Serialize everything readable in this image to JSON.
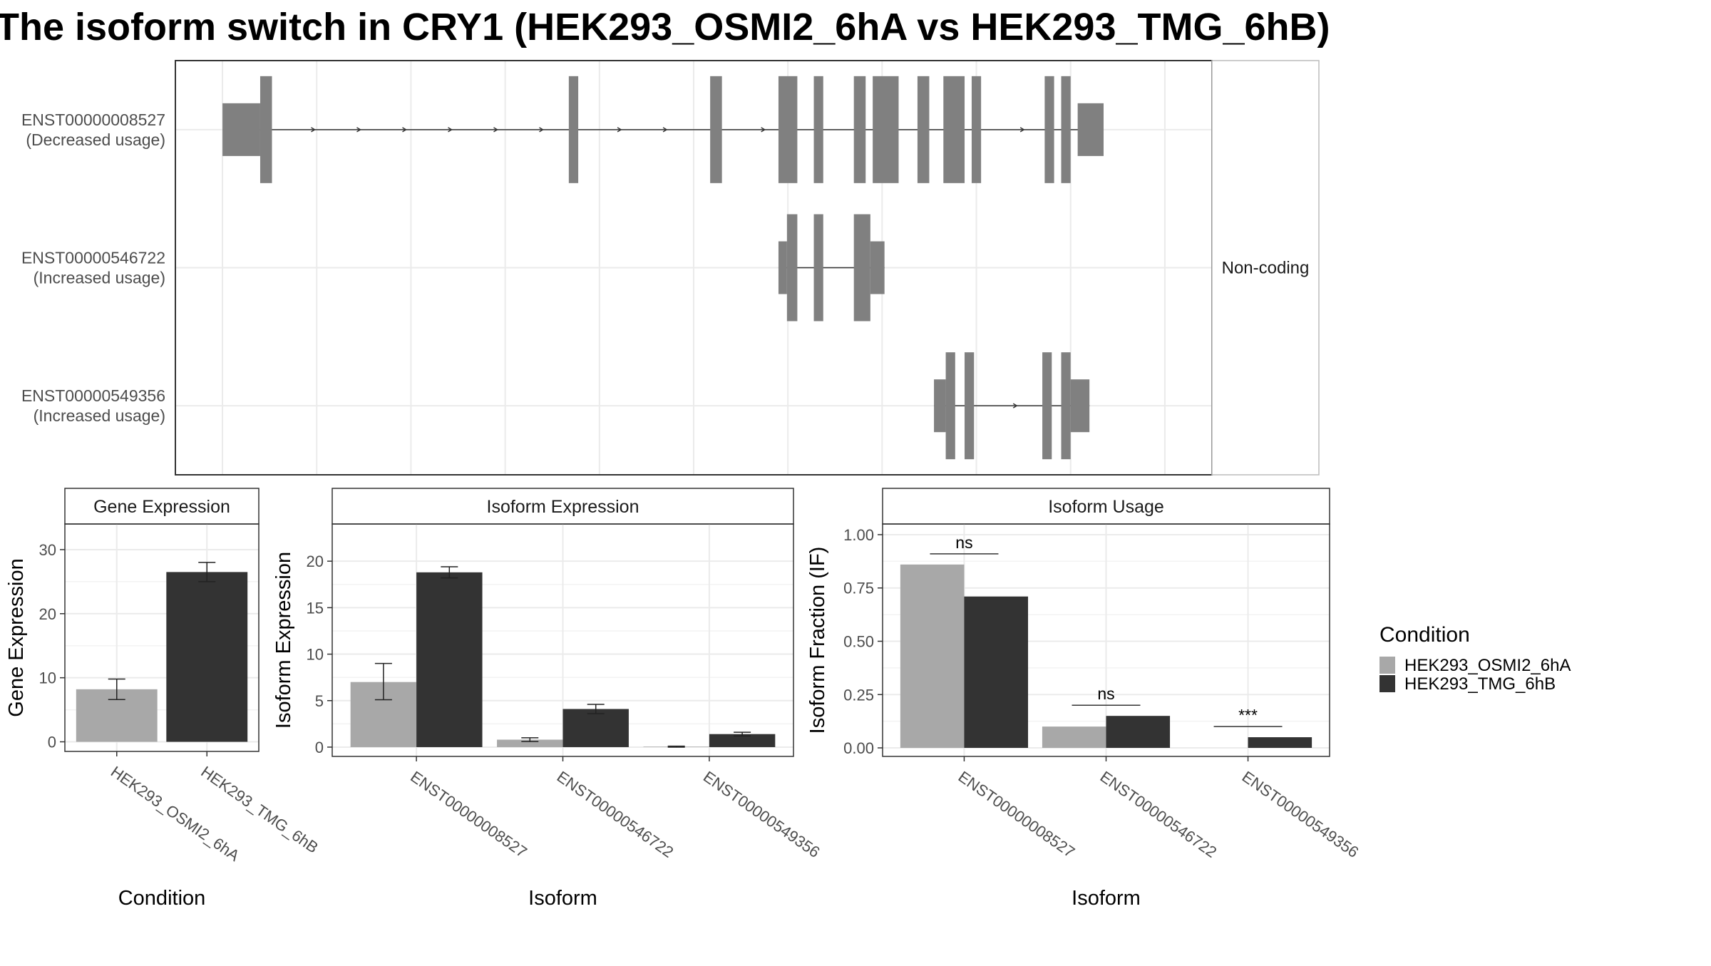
{
  "title": "The isoform switch in CRY1 (HEK293_OSMI2_6hA vs HEK293_TMG_6hB)",
  "colors": {
    "cond_a": "#a8a8a8",
    "cond_b": "#333333",
    "exon": "#808080",
    "grid": "#ebebeb",
    "panel_border": "#333333",
    "strip_fill": "#ffffff"
  },
  "legend": {
    "title": "Condition",
    "items": [
      {
        "label": "HEK293_OSMI2_6hA",
        "color": "#a8a8a8"
      },
      {
        "label": "HEK293_TMG_6hB",
        "color": "#333333"
      }
    ]
  },
  "chart_data": [
    {
      "type": "gene-structure",
      "facet_label": "Non-coding",
      "transcripts": [
        {
          "id": "ENST00000008527",
          "usage": "(Decreased usage)",
          "span": [
            -100,
            2000
          ],
          "exons": [
            [
              -100,
              -20,
              "utr"
            ],
            [
              -20,
              5,
              "cds"
            ],
            [
              635,
              655,
              "cds"
            ],
            [
              935,
              960,
              "cds"
            ],
            [
              1080,
              1120,
              "cds"
            ],
            [
              1155,
              1175,
              "cds"
            ],
            [
              1240,
              1265,
              "cds"
            ],
            [
              1280,
              1335,
              "cds"
            ],
            [
              1375,
              1400,
              "cds"
            ],
            [
              1430,
              1475,
              "cds"
            ],
            [
              1490,
              1510,
              "cds"
            ],
            [
              1645,
              1665,
              "cds"
            ],
            [
              1680,
              1700,
              "cds"
            ],
            [
              1715,
              1770,
              "utr"
            ]
          ]
        },
        {
          "id": "ENST00000546722",
          "usage": "(Increased usage)",
          "span": [
            1080,
            1330
          ],
          "exons": [
            [
              1080,
              1098,
              "utr"
            ],
            [
              1098,
              1120,
              "cds"
            ],
            [
              1155,
              1175,
              "cds"
            ],
            [
              1240,
              1275,
              "cds"
            ],
            [
              1275,
              1305,
              "utr"
            ]
          ]
        },
        {
          "id": "ENST00000549356",
          "usage": "(Increased usage)",
          "span": [
            1410,
            1760
          ],
          "exons": [
            [
              1410,
              1435,
              "utr"
            ],
            [
              1435,
              1455,
              "cds"
            ],
            [
              1475,
              1495,
              "cds"
            ],
            [
              1640,
              1660,
              "cds"
            ],
            [
              1680,
              1700,
              "cds"
            ],
            [
              1700,
              1740,
              "utr"
            ]
          ]
        }
      ],
      "xlim": [
        -200,
        2000
      ]
    },
    {
      "type": "bar",
      "title": "Gene Expression",
      "xlabel": "Condition",
      "ylabel": "Gene Expression",
      "categories": [
        "HEK293_OSMI2_6hA",
        "HEK293_TMG_6hB"
      ],
      "values": [
        8.2,
        26.5
      ],
      "errors": [
        [
          6.6,
          9.8
        ],
        [
          25.0,
          28.0
        ]
      ],
      "ylim": [
        -1.5,
        34
      ],
      "yticks": [
        0,
        10,
        20,
        30
      ]
    },
    {
      "type": "bar",
      "title": "Isoform Expression",
      "xlabel": "Isoform",
      "ylabel": "Isoform Expression",
      "categories": [
        "ENST00000008527",
        "ENST00000546722",
        "ENST00000549356"
      ],
      "series": [
        {
          "name": "HEK293_OSMI2_6hA",
          "values": [
            7.0,
            0.8,
            0.05
          ],
          "errors": [
            [
              5.1,
              9.0
            ],
            [
              0.6,
              1.0
            ],
            [
              0.0,
              0.1
            ]
          ]
        },
        {
          "name": "HEK293_TMG_6hB",
          "values": [
            18.8,
            4.1,
            1.4
          ],
          "errors": [
            [
              18.2,
              19.4
            ],
            [
              3.6,
              4.6
            ],
            [
              1.2,
              1.6
            ]
          ]
        }
      ],
      "ylim": [
        -1.0,
        24
      ],
      "yticks": [
        0,
        5,
        10,
        15,
        20
      ]
    },
    {
      "type": "bar",
      "title": "Isoform Usage",
      "xlabel": "Isoform",
      "ylabel": "Isoform Fraction (IF)",
      "categories": [
        "ENST00000008527",
        "ENST00000546722",
        "ENST00000549356"
      ],
      "series": [
        {
          "name": "HEK293_OSMI2_6hA",
          "values": [
            0.86,
            0.1,
            0.0
          ]
        },
        {
          "name": "HEK293_TMG_6hB",
          "values": [
            0.71,
            0.15,
            0.05
          ]
        }
      ],
      "significance": [
        "ns",
        "ns",
        "***"
      ],
      "ylim": [
        -0.04,
        1.05
      ],
      "yticks": [
        "0.00",
        "0.25",
        "0.50",
        "0.75",
        "1.00"
      ]
    }
  ]
}
